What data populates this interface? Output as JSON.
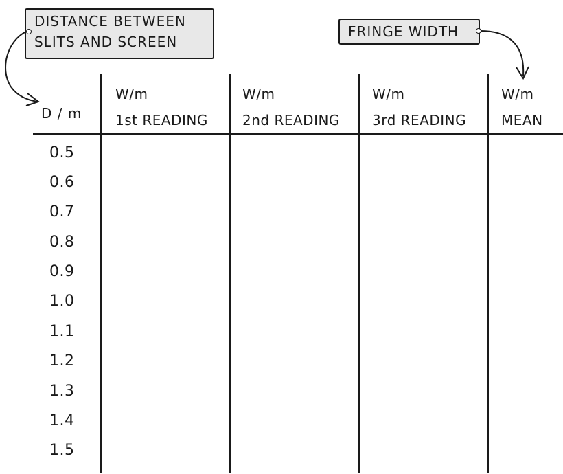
{
  "labels": {
    "distance_line1": "DISTANCE BETWEEN",
    "distance_line2": "SLITS AND SCREEN",
    "fringe": "FRINGE WIDTH"
  },
  "table": {
    "header_d": "D / m",
    "columns": [
      {
        "unit": "W/m",
        "caption": "1st READING"
      },
      {
        "unit": "W/m",
        "caption": "2nd READING"
      },
      {
        "unit": "W/m",
        "caption": "3rd READING"
      },
      {
        "unit": "W/m",
        "caption": "MEAN"
      }
    ],
    "d_values": [
      "0.5",
      "0.6",
      "0.7",
      "0.8",
      "0.9",
      "1.0",
      "1.1",
      "1.2",
      "1.3",
      "1.4",
      "1.5"
    ]
  }
}
